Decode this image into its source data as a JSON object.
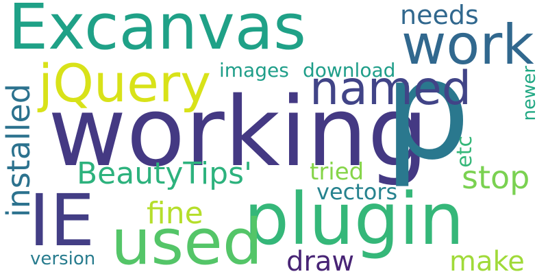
{
  "words": [
    {
      "text": "Excanvas",
      "color": "#1fa187"
    },
    {
      "text": "working",
      "color": "#443983"
    },
    {
      "text": "p",
      "color": "#2a788e"
    },
    {
      "text": "work",
      "color": "#31688e"
    },
    {
      "text": "plugin",
      "color": "#35b779"
    },
    {
      "text": "IE",
      "color": "#433e85"
    },
    {
      "text": "used",
      "color": "#54c568"
    },
    {
      "text": "jQuery",
      "color": "#d8e219"
    },
    {
      "text": "named",
      "color": "#414487"
    },
    {
      "text": "needs",
      "color": "#31688e"
    },
    {
      "text": "BeautyTips'",
      "color": "#2db27d"
    },
    {
      "text": "installed",
      "color": "#2c728e"
    },
    {
      "text": "images",
      "color": "#1f9e89"
    },
    {
      "text": "download",
      "color": "#1f9e89"
    },
    {
      "text": "stop",
      "color": "#7ad151"
    },
    {
      "text": "tried",
      "color": "#86d549"
    },
    {
      "text": "vectors",
      "color": "#26828e"
    },
    {
      "text": "fine",
      "color": "#b5de2b"
    },
    {
      "text": "etc",
      "color": "#35b779"
    },
    {
      "text": "newer",
      "color": "#22a884"
    },
    {
      "text": "draw",
      "color": "#482475"
    },
    {
      "text": "make",
      "color": "#a0da39"
    },
    {
      "text": "version",
      "color": "#287c8e"
    }
  ]
}
